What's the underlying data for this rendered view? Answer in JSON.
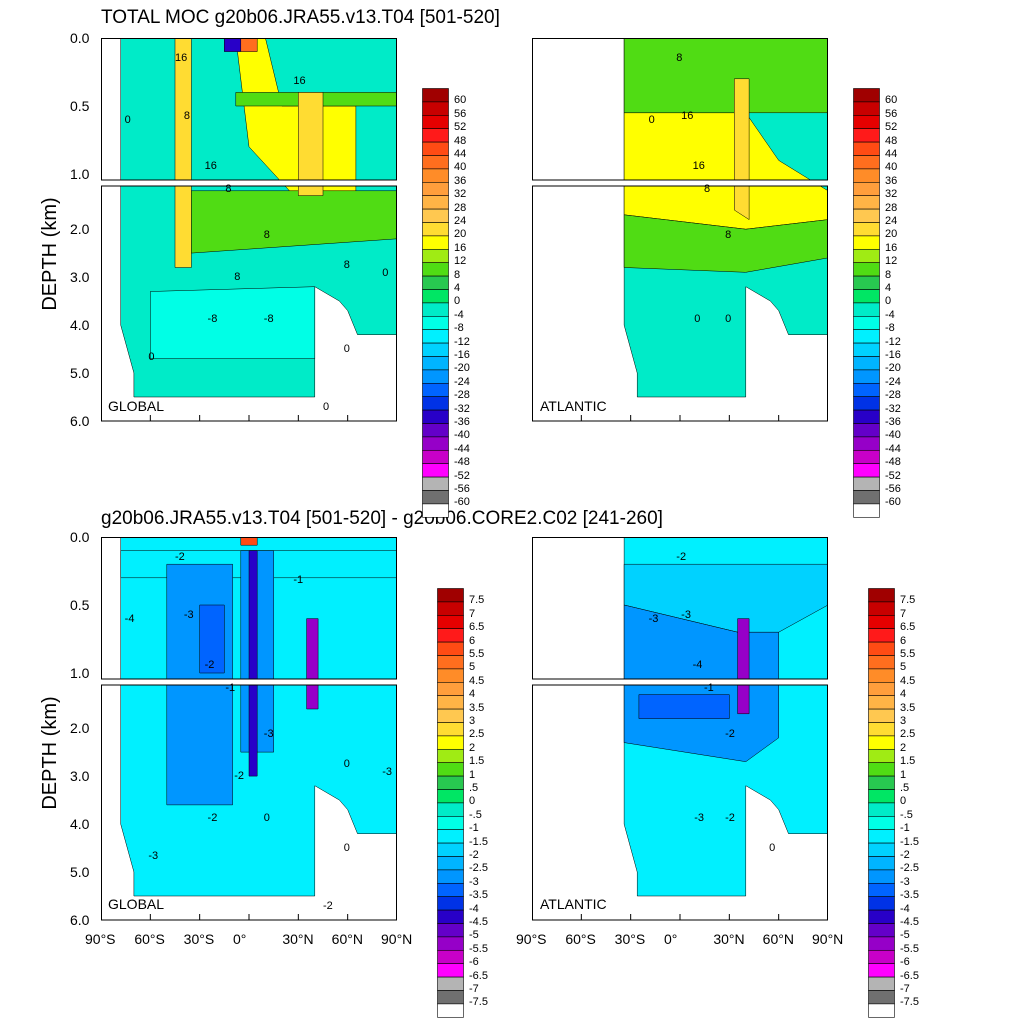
{
  "chart_data": [
    {
      "type": "heatmap",
      "title": "TOTAL MOC g20b06.JRA55.v13.T04 [501-520]",
      "ylabel": "DEPTH (km)",
      "xlabel": "",
      "ylim": [
        6.0,
        0.0
      ],
      "yticks": [
        "0.0",
        "0.5",
        "1.0",
        "2.0",
        "3.0",
        "4.0",
        "5.0",
        "6.0"
      ],
      "panels": [
        {
          "region": "GLOBAL",
          "contour_labels": [
            "16",
            "8",
            "0",
            "16",
            "8",
            "8",
            "-8",
            "-8",
            "0",
            "0",
            "0",
            "16",
            "8",
            "0",
            "8"
          ]
        },
        {
          "region": "ATLANTIC",
          "contour_labels": [
            "8",
            "16",
            "0",
            "16",
            "8",
            "8",
            "0",
            "0"
          ]
        }
      ],
      "colorbar": {
        "levels": [
          "60",
          "56",
          "52",
          "48",
          "44",
          "40",
          "36",
          "32",
          "28",
          "24",
          "20",
          "16",
          "12",
          "8",
          "4",
          "0",
          "-4",
          "-8",
          "-12",
          "-16",
          "-20",
          "-24",
          "-28",
          "-32",
          "-36",
          "-40",
          "-44",
          "-48",
          "-52",
          "-56",
          "-60"
        ],
        "colors": [
          "#a00000",
          "#c80000",
          "#e60000",
          "#ff1a1a",
          "#ff4b14",
          "#ff6e1e",
          "#ff8c28",
          "#ff9e3c",
          "#ffb446",
          "#ffc850",
          "#ffdc32",
          "#ffff00",
          "#a0eb14",
          "#50dc14",
          "#28c850",
          "#00e664",
          "#00ebc8",
          "#00ffe6",
          "#00f0ff",
          "#00d2ff",
          "#00b4ff",
          "#0096ff",
          "#0064ff",
          "#0032e6",
          "#2800c8",
          "#6400c8",
          "#9600c8",
          "#c800c8",
          "#ff00ff",
          "#b4b4b4",
          "#707070",
          "#ffffff"
        ]
      }
    },
    {
      "type": "heatmap",
      "title": "g20b06.JRA55.v13.T04 [501-520] - g20b06.CORE2.C02 [241-260]",
      "ylabel": "DEPTH (km)",
      "xlabel": "",
      "xticks": [
        "90°S",
        "60°S",
        "30°S",
        "0°",
        "30°N",
        "60°N",
        "90°N"
      ],
      "ylim": [
        6.0,
        0.0
      ],
      "yticks": [
        "0.0",
        "0.5",
        "1.0",
        "2.0",
        "3.0",
        "4.0",
        "5.0",
        "6.0"
      ],
      "panels": [
        {
          "region": "GLOBAL",
          "contour_labels": [
            "-2",
            "-3",
            "-4",
            "-2",
            "-1",
            "-3",
            "-2",
            "0",
            "0",
            "-3",
            "-2",
            "-1",
            "0",
            "-3",
            "-2"
          ]
        },
        {
          "region": "ATLANTIC",
          "contour_labels": [
            "-2",
            "-3",
            "-3",
            "-4",
            "-1",
            "-2",
            "-3",
            "-2",
            "0"
          ]
        }
      ],
      "colorbar": {
        "levels": [
          "7.5",
          "7",
          "6.5",
          "6",
          "5.5",
          "5",
          "4.5",
          "4",
          "3.5",
          "3",
          "2.5",
          "2",
          "1.5",
          "1",
          ".5",
          "0",
          "-.5",
          "-1",
          "-1.5",
          "-2",
          "-2.5",
          "-3",
          "-3.5",
          "-4",
          "-4.5",
          "-5",
          "-5.5",
          "-6",
          "-6.5",
          "-7",
          "-7.5"
        ],
        "colors": [
          "#a00000",
          "#c80000",
          "#e60000",
          "#ff1a1a",
          "#ff4b14",
          "#ff6e1e",
          "#ff8c28",
          "#ff9e3c",
          "#ffb446",
          "#ffc850",
          "#ffdc32",
          "#ffff00",
          "#a0eb14",
          "#50dc14",
          "#28c850",
          "#00e664",
          "#00ebc8",
          "#00ffe6",
          "#00f0ff",
          "#00d2ff",
          "#00b4ff",
          "#0096ff",
          "#0064ff",
          "#0032e6",
          "#2800c8",
          "#6400c8",
          "#9600c8",
          "#c800c8",
          "#ff00ff",
          "#b4b4b4",
          "#707070",
          "#ffffff"
        ]
      }
    }
  ]
}
